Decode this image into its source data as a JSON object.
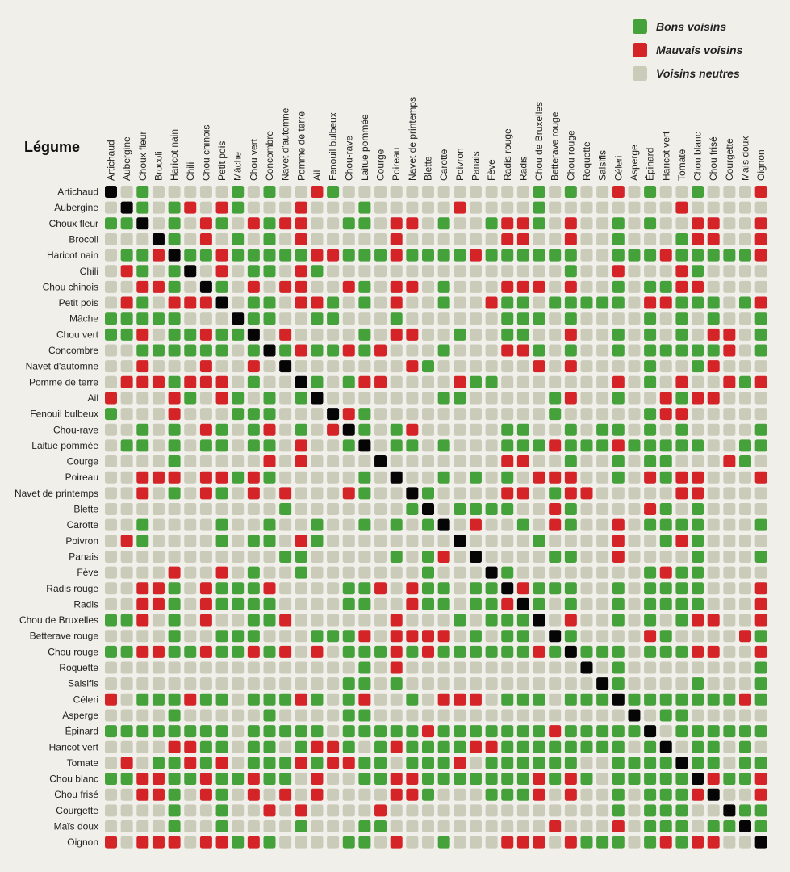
{
  "colors": {
    "good": "#45a23a",
    "bad": "#d42428",
    "neutral": "#cbcbb9",
    "self": "#050505",
    "background": "#f0efe9"
  },
  "legend": [
    {
      "key": "G",
      "label": "Bons voisins"
    },
    {
      "key": "B",
      "label": "Mauvais voisins"
    },
    {
      "key": "N",
      "label": "Voisins neutres"
    }
  ],
  "chart_data": {
    "type": "heatmap",
    "title": "",
    "row_header": "Légume",
    "encoding": {
      "G": "Bons voisins",
      "B": "Mauvais voisins",
      "N": "Voisins neutres",
      "X": "même légume"
    },
    "vegetables": [
      "Artichaud",
      "Aubergine",
      "Choux fleur",
      "Brocoli",
      "Haricot nain",
      "Chili",
      "Chou chinois",
      "Petit pois",
      "Mâche",
      "Chou vert",
      "Concombre",
      "Navet d'automne",
      "Pomme de terre",
      "Ail",
      "Fenouil bulbeux",
      "Chou-rave",
      "Laitue pommée",
      "Courge",
      "Poireau",
      "Navet de printemps",
      "Blette",
      "Carotte",
      "Poivron",
      "Panais",
      "Fève",
      "Radis rouge",
      "Radis",
      "Chou de Bruxelles",
      "Betterave rouge",
      "Chou rouge",
      "Roquette",
      "Salsifis",
      "Céleri",
      "Asperge",
      "Épinard",
      "Haricot vert",
      "Tomate",
      "Chou blanc",
      "Chou frisé",
      "Courgette",
      "Maïs doux",
      "Oignon"
    ],
    "matrix": [
      "XNGNNNNNGNGNNBGNNNNNNNNNNNNGNGNNBNGNNGNNNB",
      "NXGNGBNBGNNNBNNNGNNNNNBNNNNGNNNNNNNNBNNNNN",
      "GGXNGNBGNBGBBNNGGNBBNGNNGBBGNBNNGNGNNBBNNB",
      "NNNXGNBNGNGNBNNNNNBNNNNNNBBNNBNNGNNNGBBNNB",
      "NGGBXGGBGGGGGBBGGGBGGGGBGGGGGGNNGGGBGGGGGB",
      "NBGNGXNBNGGNBGNNNNNNNNNNNNNNNGNNBNNNBGNNNN",
      "NNBBGNXGNBNBBNNBGNBBNGNNNBBBNBNNGNGGBBNNNN",
      "NBGNBBBXNGGNBBGNGNBNNGNNBGGNGGGGGNBBGGGNGB",
      "GGGGGNNNXGGNNGGNNNGNNNNNNGGGNGNNNNGNGNGNNG",
      "GGBNGGBGGXNBNNNNGNBBNNGNNGGNNBNNGNGNGNBBNG",
      "NNGGGGGGNGXGBGGBGBNNNGNNNBBGNGNNGNGGGGGBNG",
      "NNBNNNBNNBNXNNNNNNNBGNNNNNNBNBNNNNGNNGBNNN",
      "NBBBGBBBNGNNXGNGBBNNNNBGGNNNNNNNBNGNBNNBGB",
      "BNNNBGNBGNGNGXNNNNNNNGGNNNNNGBNNGNNBGBBNNN",
      "GNNNBNNNGGGNNNXBGNNNNNNNNNNNGNNNNNGBBNNNNN",
      "NNGNGNBGNGBNGNBXGNGBNNNNNGGNNGNGGNGNGNNNNG",
      "NGGNGNGGNGGNBNNGXNGGNGNNNGGGBGGGBGGGGGNNGG",
      "NNNNGNNNNNBNBNNNNXNNNNNNNBBNNGNNGNGGNNNBGN",
      "NNBBBNBBGBGNNNNNGNXNNGNGNGNBBBNNGNBGBBNNNB",
      "NNBNGNBGNBNBNNNBGNNXGNNNNBBNGBBNNNNNBBNNNN",
      "NNNNNNNNNNNGNNNNNNNGXNGGGGNNBGNNNNBGNGNNNN",
      "NNGNNNNGNNGNNGNNGNGNGXNBNNGNBGNNBNGGGGNNNG",
      "NBGNNNNGNGGNBGNNNNNNNNXNNNNGNNNNBNNGBGNNNN",
      "NNNNNNNNNNNGGNNNNNGNGBNXNNNNGGNNBNNNNGNNNG",
      "NNNNBNNBNGNNGNNNNNNNGNNNXGNNNNNNNNGBGGNNNN",
      "NNBBGNBGGGBNNNNGGBNBGGNGGXBGGGNNGNGGGGNNNB",
      "NNBBGNBGGGGNNNNGGNNBGGNGGBXGNGNNGNGGGGNNNB",
      "GGBNGNBNNGGBNNNNNNBNNNGNGGGXNBNNGNGNGBBNNB",
      "NNNNGNNGGGNNNGGGBNBBBBNGNGGNXGNNNNBGNNNNBG",
      "GGBBGGBGGBGBNBNGGGBGBGGGGGGBGXGGGNGGGBBNNB",
      "NNNNNNNNNNNNNNNNGNBNNNNNNNNNNNXNGNNNNNNNNG",
      "NNNNNNNNNNNNNNNGGNGNNNNNNNNNNNNXGNNNNGNNNG",
      "BNGGGBGGNGGGBGNGBNNGNBBBNGGGNGGGXGGGGGGGBG",
      "NNNNGNNNNNGNNNNGGNNNNNNNNNNNNNNNNXNGGNNNNN",
      "GGGGGGGGNGGGGGNGGGGGBGGGGGGGBGGGGGXNGGGGGG",
      "NNNNBBGGNGGNGBBGNGBGGGGBBGGGGGGGGNGXNGGNGN",
      "NBNGGBGBNGGGBGBBGGNGGGBNGGGGGGNNGGGGXGGNGG",
      "GGBBGGBGGBGGNBNNGGBBGGGGGGGBGBGNGGGGGXBGGB",
      "NNBBGNBGNBNBNBNNNNBBGNNNGGGBNBNNGNGGGBXNNB",
      "NNNNGNNGNNBNBNNNNBNNNNNNNNNNNNNNGNGGGNNXGG",
      "NNNNGNNGNNNNGNNNGGNNNNNNNNNNBNNNBNGGGNGGXG",
      "BNBBBNBBGBGNNNNGGNBNNGNNNBBBNBGGGNGBGBBNNX"
    ]
  }
}
